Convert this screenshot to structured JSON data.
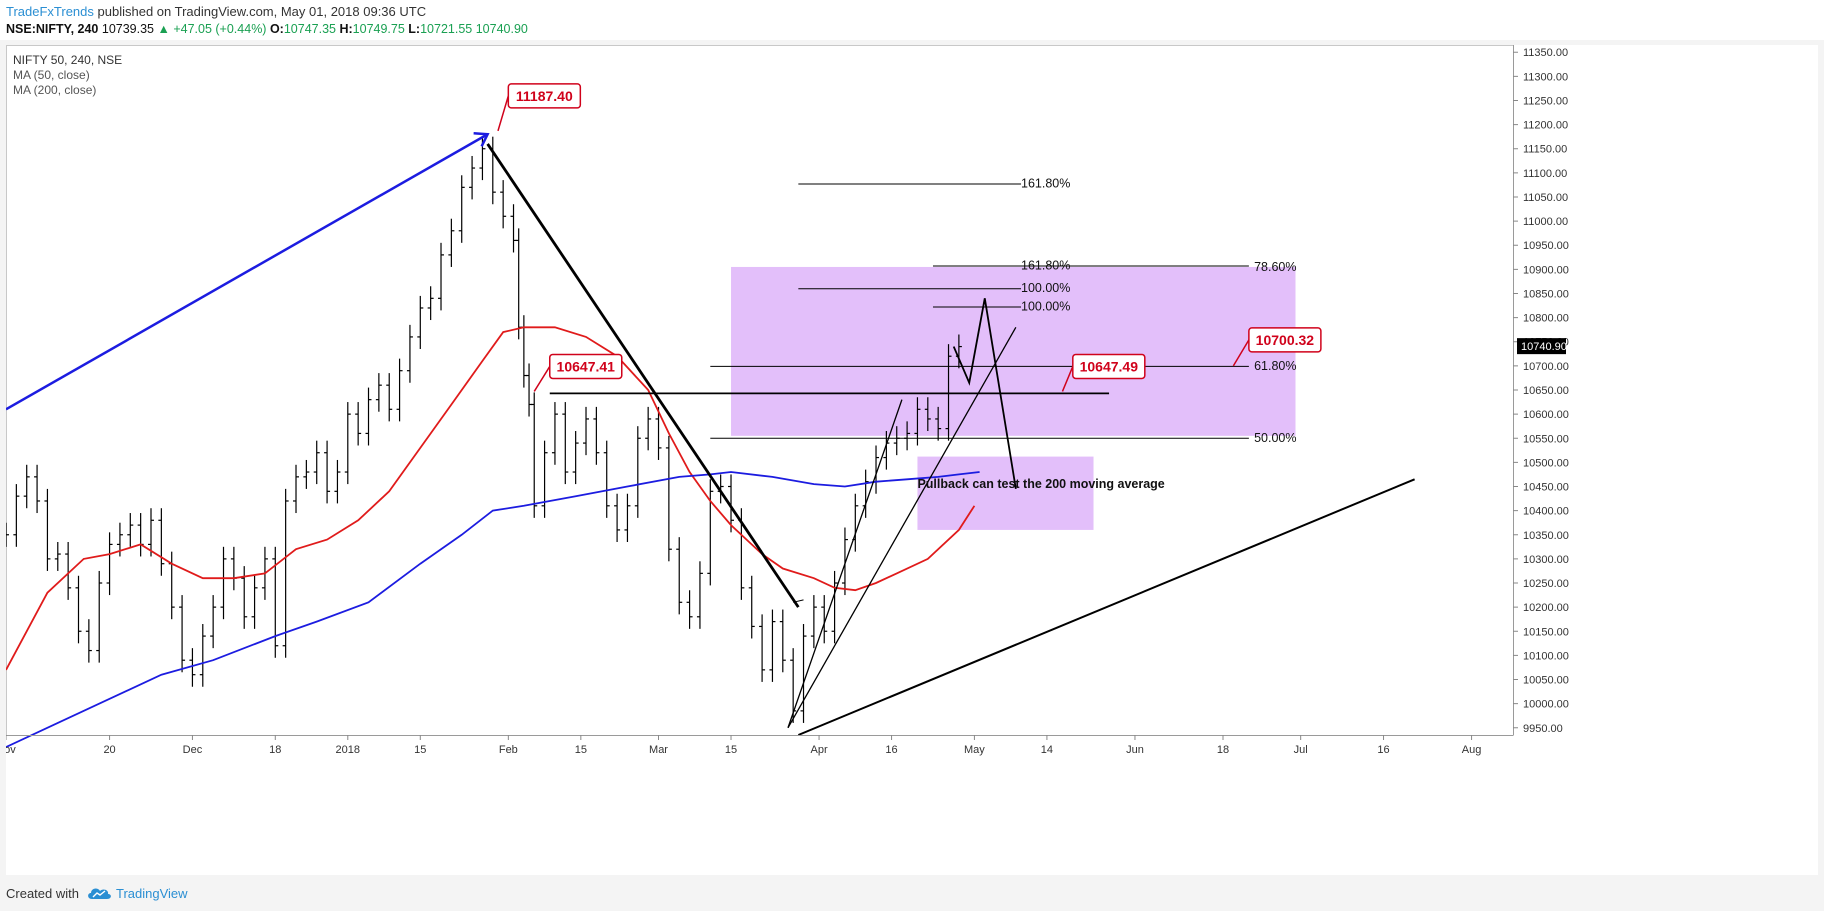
{
  "header": {
    "author": "TradeFxTrends",
    "published_text": "published on TradingView.com, May 01, 2018 09:36 UTC",
    "symbol": "NSE:NIFTY, 240",
    "last": "10739.35",
    "change": "▲ +47.05 (+0.44%)",
    "o_label": "O:",
    "o_value": "10747.35",
    "h_label": "H:",
    "h_value": "10749.75",
    "l_label": "L:",
    "l_value": "10721.55",
    "c_label": "",
    "c_value": "10740.90"
  },
  "legend": {
    "title": "NIFTY 50, 240, NSE",
    "ma50": "MA (50, close)",
    "ma200": "MA (200, close)"
  },
  "footer": {
    "created_with": "Created with",
    "brand": "TradingView"
  },
  "colors": {
    "price": "#000000",
    "ma50": "#e01b1b",
    "ma200": "#1c1ce0",
    "zone": "#e0b8fa",
    "callout": "#d0021b",
    "trend_arrow": "#1c1ce0",
    "last_price_tag": "#000000"
  },
  "chart_data": {
    "type": "line",
    "title": "NIFTY 50, 240, NSE",
    "y_axis": {
      "ticks": [
        9950,
        10000,
        10050,
        10100,
        10150,
        10200,
        10250,
        10300,
        10350,
        10400,
        10450,
        10500,
        10550,
        10600,
        10650,
        10700,
        10750,
        10800,
        10850,
        10900,
        10950,
        11000,
        11050,
        11100,
        11150,
        11200,
        11250,
        11300,
        11350
      ],
      "tick_labels": [
        "9950.00",
        "10000.00",
        "10050.00",
        "10100.00",
        "10150.00",
        "10200.00",
        "10250.00",
        "10300.00",
        "10350.00",
        "10400.00",
        "10450.00",
        "10500.00",
        "10550.00",
        "10600.00",
        "10650.00",
        "10700.00",
        "10750.00",
        "10800.00",
        "10850.00",
        "10900.00",
        "10950.00",
        "11000.00",
        "11050.00",
        "11100.00",
        "11150.00",
        "11200.00",
        "11250.00",
        "11300.00",
        "11350.00"
      ],
      "range": [
        9935,
        11365
      ],
      "last_price": "10740.90"
    },
    "x_axis": {
      "ticks": [
        {
          "t": 0,
          "label": "Nov"
        },
        {
          "t": 20,
          "label": "20"
        },
        {
          "t": 36,
          "label": "Dec"
        },
        {
          "t": 52,
          "label": "18"
        },
        {
          "t": 66,
          "label": "2018"
        },
        {
          "t": 80,
          "label": "15"
        },
        {
          "t": 97,
          "label": "Feb"
        },
        {
          "t": 111,
          "label": "15"
        },
        {
          "t": 126,
          "label": "Mar"
        },
        {
          "t": 140,
          "label": "15"
        },
        {
          "t": 157,
          "label": "Apr"
        },
        {
          "t": 171,
          "label": "16"
        },
        {
          "t": 187,
          "label": "May"
        },
        {
          "t": 201,
          "label": "14"
        },
        {
          "t": 218,
          "label": "Jun"
        },
        {
          "t": 235,
          "label": "18"
        },
        {
          "t": 250,
          "label": "Jul"
        },
        {
          "t": 266,
          "label": "16"
        },
        {
          "t": 283,
          "label": "Aug"
        }
      ],
      "range": [
        0,
        291
      ]
    },
    "series": [
      {
        "name": "NIFTY 50",
        "style": "ohlc",
        "points": [
          [
            0,
            10350
          ],
          [
            2,
            10430
          ],
          [
            4,
            10470
          ],
          [
            6,
            10420
          ],
          [
            8,
            10300
          ],
          [
            10,
            10310
          ],
          [
            12,
            10240
          ],
          [
            14,
            10150
          ],
          [
            16,
            10110
          ],
          [
            18,
            10250
          ],
          [
            20,
            10330
          ],
          [
            22,
            10350
          ],
          [
            24,
            10370
          ],
          [
            26,
            10330
          ],
          [
            28,
            10380
          ],
          [
            30,
            10290
          ],
          [
            32,
            10200
          ],
          [
            34,
            10090
          ],
          [
            36,
            10060
          ],
          [
            38,
            10140
          ],
          [
            40,
            10200
          ],
          [
            42,
            10300
          ],
          [
            44,
            10260
          ],
          [
            46,
            10180
          ],
          [
            48,
            10240
          ],
          [
            50,
            10300
          ],
          [
            52,
            10120
          ],
          [
            54,
            10420
          ],
          [
            56,
            10470
          ],
          [
            58,
            10480
          ],
          [
            60,
            10520
          ],
          [
            62,
            10440
          ],
          [
            64,
            10480
          ],
          [
            66,
            10600
          ],
          [
            68,
            10560
          ],
          [
            70,
            10630
          ],
          [
            72,
            10660
          ],
          [
            74,
            10610
          ],
          [
            76,
            10690
          ],
          [
            78,
            10760
          ],
          [
            80,
            10820
          ],
          [
            82,
            10840
          ],
          [
            84,
            10930
          ],
          [
            86,
            10980
          ],
          [
            88,
            11070
          ],
          [
            90,
            11110
          ],
          [
            92,
            11150
          ],
          [
            94,
            11060
          ],
          [
            96,
            11010
          ],
          [
            98,
            10960
          ],
          [
            99,
            10780
          ],
          [
            100,
            10680
          ],
          [
            101,
            10620
          ],
          [
            102,
            10410
          ],
          [
            104,
            10520
          ],
          [
            106,
            10600
          ],
          [
            108,
            10480
          ],
          [
            110,
            10540
          ],
          [
            112,
            10590
          ],
          [
            114,
            10520
          ],
          [
            116,
            10410
          ],
          [
            118,
            10360
          ],
          [
            120,
            10410
          ],
          [
            122,
            10550
          ],
          [
            124,
            10590
          ],
          [
            126,
            10530
          ],
          [
            128,
            10320
          ],
          [
            130,
            10210
          ],
          [
            132,
            10180
          ],
          [
            134,
            10270
          ],
          [
            136,
            10440
          ],
          [
            138,
            10450
          ],
          [
            140,
            10380
          ],
          [
            142,
            10240
          ],
          [
            144,
            10160
          ],
          [
            146,
            10070
          ],
          [
            148,
            10170
          ],
          [
            150,
            10090
          ],
          [
            152,
            9985
          ],
          [
            154,
            10140
          ],
          [
            156,
            10200
          ],
          [
            158,
            10150
          ],
          [
            160,
            10250
          ],
          [
            162,
            10340
          ],
          [
            164,
            10410
          ],
          [
            166,
            10460
          ],
          [
            168,
            10510
          ],
          [
            170,
            10540
          ],
          [
            172,
            10550
          ],
          [
            174,
            10560
          ],
          [
            176,
            10610
          ],
          [
            178,
            10590
          ],
          [
            180,
            10570
          ],
          [
            182,
            10720
          ],
          [
            184,
            10740
          ]
        ]
      },
      {
        "name": "MA (50, close)",
        "style": "line",
        "points": [
          [
            0,
            10070
          ],
          [
            8,
            10230
          ],
          [
            15,
            10300
          ],
          [
            20,
            10310
          ],
          [
            26,
            10330
          ],
          [
            32,
            10290
          ],
          [
            38,
            10260
          ],
          [
            44,
            10260
          ],
          [
            50,
            10270
          ],
          [
            56,
            10320
          ],
          [
            62,
            10340
          ],
          [
            68,
            10380
          ],
          [
            74,
            10440
          ],
          [
            80,
            10530
          ],
          [
            86,
            10620
          ],
          [
            92,
            10710
          ],
          [
            96,
            10770
          ],
          [
            100,
            10780
          ],
          [
            106,
            10780
          ],
          [
            112,
            10760
          ],
          [
            118,
            10720
          ],
          [
            124,
            10650
          ],
          [
            128,
            10560
          ],
          [
            132,
            10480
          ],
          [
            136,
            10420
          ],
          [
            140,
            10370
          ],
          [
            146,
            10310
          ],
          [
            150,
            10280
          ],
          [
            156,
            10260
          ],
          [
            160,
            10240
          ],
          [
            164,
            10235
          ],
          [
            168,
            10250
          ],
          [
            172,
            10270
          ],
          [
            178,
            10300
          ],
          [
            184,
            10360
          ],
          [
            187,
            10410
          ]
        ]
      },
      {
        "name": "MA (200, close)",
        "style": "line",
        "points": [
          [
            0,
            9910
          ],
          [
            10,
            9960
          ],
          [
            20,
            10010
          ],
          [
            30,
            10060
          ],
          [
            40,
            10090
          ],
          [
            52,
            10140
          ],
          [
            60,
            10170
          ],
          [
            70,
            10210
          ],
          [
            80,
            10290
          ],
          [
            88,
            10350
          ],
          [
            94,
            10400
          ],
          [
            100,
            10410
          ],
          [
            110,
            10430
          ],
          [
            120,
            10450
          ],
          [
            130,
            10470
          ],
          [
            136,
            10475
          ],
          [
            140,
            10480
          ],
          [
            148,
            10470
          ],
          [
            156,
            10455
          ],
          [
            162,
            10450
          ],
          [
            168,
            10460
          ],
          [
            174,
            10465
          ],
          [
            180,
            10470
          ],
          [
            184,
            10475
          ],
          [
            188,
            10480
          ]
        ]
      }
    ],
    "annotations": {
      "price_labels": [
        "11187.40",
        "10647.41",
        "10647.49",
        "10700.32"
      ],
      "fib_levels_top": [
        "161.80%"
      ],
      "fib_levels_right": [
        "161.80%",
        "100.00%",
        "100.00%"
      ],
      "zone_levels": [
        "78.60%",
        "61.80%",
        "50.00%"
      ],
      "note": "Pullback can test the 200 moving average"
    }
  }
}
